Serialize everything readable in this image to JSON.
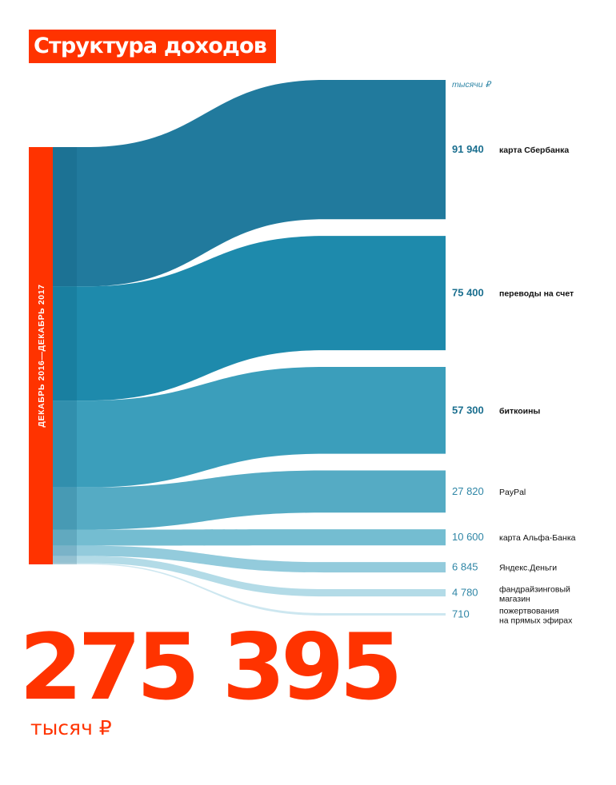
{
  "header": {
    "title": "Структура доходов"
  },
  "summary": {
    "total_value": "275 395",
    "total_unit": "тысяч ₽"
  },
  "colors": {
    "accent": "#ff3300",
    "source_bar": "#ff3300",
    "flows": [
      "#217a9d",
      "#1e8aac",
      "#3b9ebb",
      "#55abc4",
      "#74bdd1",
      "#93cbdc",
      "#b3dbe7",
      "#cde7f0"
    ],
    "value_bold": "#1b6f8f",
    "value_regular": "#2f86a6",
    "label": "#111111"
  },
  "chart_data": {
    "type": "sankey",
    "title": "Структура доходов",
    "source": "Декабрь 2016—декабрь 2017",
    "unit": "тысячи ₽",
    "total": 275395,
    "categories": [
      "карта Сбербанка",
      "переводы на счет",
      "биткоины",
      "PayPal",
      "карта Альфа-Банка",
      "Яндекс.Деньги",
      "фандрайзинговый магазин",
      "пожертвования на прямых эфирах"
    ],
    "label_lines": [
      [
        "карта Сбербанка"
      ],
      [
        "переводы на счет"
      ],
      [
        "биткоины"
      ],
      [
        "PayPal"
      ],
      [
        "карта Альфа-Банка"
      ],
      [
        "Яндекс.Деньги"
      ],
      [
        "фандрайзинговый",
        "магазин"
      ],
      [
        "пожертвования",
        "на прямых эфирах"
      ]
    ],
    "values": [
      91940,
      75400,
      57300,
      27820,
      10600,
      6845,
      4780,
      710
    ],
    "value_labels": [
      "91 940",
      "75 400",
      "57 300",
      "27 820",
      "10 600",
      "6 845",
      "4 780",
      "710"
    ],
    "bold": [
      true,
      true,
      true,
      false,
      false,
      false,
      false,
      false
    ]
  }
}
